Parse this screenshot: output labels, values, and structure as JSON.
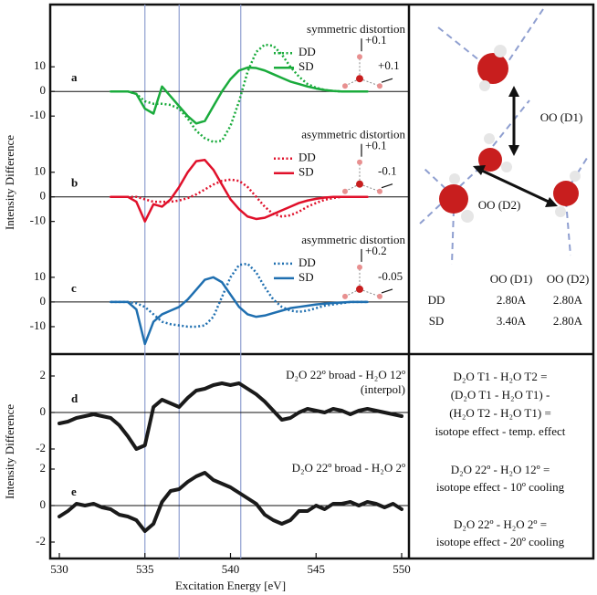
{
  "chart_data": [
    {
      "type": "line",
      "label": "a",
      "annotation": "symmetric distortion",
      "distortion": [
        "+0.1",
        "+0.1"
      ],
      "x": [
        533,
        533.5,
        534,
        534.5,
        535,
        535.5,
        536,
        536.5,
        537,
        537.5,
        538,
        538.5,
        539,
        539.5,
        540,
        540.5,
        541,
        541.5,
        542,
        542.5,
        543,
        543.5,
        544,
        544.5,
        545,
        545.5,
        546,
        546.5,
        547,
        547.5,
        548
      ],
      "series": [
        {
          "name": "DD",
          "color": "#1aab3c",
          "style": "dotted",
          "values": [
            0,
            0,
            0,
            -1,
            -4,
            -5,
            -5,
            -5.5,
            -7,
            -11,
            -16,
            -19,
            -20.5,
            -20,
            -14,
            -4,
            8,
            16,
            19,
            18.5,
            15,
            10,
            6,
            3,
            1.5,
            0.6,
            0.2,
            0,
            0,
            0,
            0
          ]
        },
        {
          "name": "SD",
          "color": "#1aab3c",
          "style": "solid",
          "values": [
            0,
            0,
            0,
            -1,
            -7,
            -9,
            2,
            -2,
            -6,
            -10,
            -13,
            -12,
            -6,
            0,
            5,
            8.5,
            9.7,
            9.5,
            8.5,
            7,
            5.5,
            4,
            3,
            2,
            1.2,
            0.6,
            0.2,
            0,
            0,
            0,
            0
          ]
        }
      ],
      "xlim": [
        530,
        550
      ],
      "ylim": [
        -24,
        26
      ],
      "yticks": [
        -10,
        0,
        10
      ],
      "vlines": [
        535,
        537,
        540.6
      ],
      "vline_color": "#8f9fd0"
    },
    {
      "type": "line",
      "label": "b",
      "annotation": "asymmetric distortion",
      "distortion": [
        "+0.1",
        "-0.1"
      ],
      "ylabel": "Intensity Difference",
      "x": [
        533,
        533.5,
        534,
        534.5,
        535,
        535.5,
        536,
        536.5,
        537,
        537.5,
        538,
        538.5,
        539,
        539.5,
        540,
        540.5,
        541,
        541.5,
        542,
        542.5,
        543,
        543.5,
        544,
        544.5,
        545,
        545.5,
        546,
        546.5,
        547,
        547.5,
        548
      ],
      "series": [
        {
          "name": "DD",
          "color": "#e0102a",
          "style": "dotted",
          "values": [
            0,
            0,
            0,
            0,
            -1,
            -2,
            -2,
            -2,
            -1.5,
            -0.5,
            1,
            3,
            5,
            6.5,
            7,
            6.5,
            4,
            0,
            -4,
            -7,
            -8,
            -7.5,
            -6,
            -4,
            -2.5,
            -1.2,
            -0.5,
            0,
            0,
            0,
            0
          ]
        },
        {
          "name": "SD",
          "color": "#e0102a",
          "style": "solid",
          "values": [
            0,
            0,
            0,
            -2,
            -10,
            -3,
            -4,
            -1,
            4,
            10,
            14.5,
            15,
            11,
            5,
            -1,
            -5,
            -8,
            -9,
            -8.5,
            -7,
            -5.5,
            -4,
            -2.5,
            -1.5,
            -0.8,
            -0.3,
            0,
            0,
            0,
            0,
            0
          ]
        }
      ],
      "xlim": [
        530,
        550
      ],
      "ylim": [
        -22,
        24
      ],
      "yticks": [
        -10,
        0,
        10
      ]
    },
    {
      "type": "line",
      "label": "c",
      "annotation": "asymmetric distortion",
      "distortion": [
        "+0.2",
        "-0.05"
      ],
      "x": [
        533,
        533.5,
        534,
        534.5,
        535,
        535.5,
        536,
        536.5,
        537,
        537.5,
        538,
        538.5,
        539,
        539.5,
        540,
        540.5,
        541,
        541.5,
        542,
        542.5,
        543,
        543.5,
        544,
        544.5,
        545,
        545.5,
        546,
        546.5,
        547,
        547.5,
        548
      ],
      "series": [
        {
          "name": "DD",
          "color": "#1f6fb0",
          "style": "dotted",
          "values": [
            0,
            0,
            0,
            -0.5,
            -2,
            -5,
            -8,
            -9,
            -9.5,
            -10,
            -10,
            -9.5,
            -6,
            2,
            10,
            15,
            15.5,
            12,
            6,
            1,
            -2,
            -3.5,
            -4,
            -3.5,
            -2.5,
            -1.5,
            -1,
            -0.5,
            0,
            0,
            0
          ]
        },
        {
          "name": "SD",
          "color": "#1f6fb0",
          "style": "solid",
          "values": [
            0,
            0,
            0,
            -3,
            -17,
            -8,
            -5,
            -3.5,
            -2,
            1,
            5,
            9,
            10,
            8,
            3,
            -2,
            -5,
            -6,
            -5.5,
            -4.5,
            -3.5,
            -2.5,
            -2,
            -1.5,
            -1,
            -0.7,
            -0.4,
            -0.2,
            0,
            0,
            0
          ]
        }
      ],
      "xlim": [
        530,
        550
      ],
      "ylim": [
        -20,
        24
      ],
      "yticks": [
        -10,
        0,
        10
      ]
    },
    {
      "type": "line",
      "label": "d",
      "annotation": "D₂O 22º broad - H₂O 12º",
      "note": "(interpol)",
      "ylabel": "Intensity Difference",
      "x": [
        530,
        530.5,
        531,
        531.5,
        532,
        532.5,
        533,
        533.5,
        534,
        534.5,
        535,
        535.5,
        536,
        536.5,
        537,
        537.5,
        538,
        538.5,
        539,
        539.5,
        540,
        540.5,
        541,
        541.5,
        542,
        542.5,
        543,
        543.5,
        544,
        544.5,
        545,
        545.5,
        546,
        546.5,
        547,
        547.5,
        548,
        548.5,
        549,
        549.5,
        550
      ],
      "series": [
        {
          "color": "#1a1a1a",
          "style": "solid",
          "values": [
            -0.6,
            -0.5,
            -0.3,
            -0.2,
            -0.1,
            -0.2,
            -0.3,
            -0.7,
            -1.3,
            -2,
            -1.8,
            0.3,
            0.7,
            0.5,
            0.3,
            0.8,
            1.2,
            1.3,
            1.5,
            1.6,
            1.5,
            1.6,
            1.3,
            1,
            0.6,
            0.1,
            -0.4,
            -0.3,
            0,
            0.2,
            0.1,
            0,
            0.2,
            0.1,
            -0.1,
            0.1,
            0.2,
            0.1,
            0,
            -0.1,
            -0.2
          ]
        }
      ],
      "xlim": [
        530,
        550
      ],
      "ylim": [
        -2.8,
        2.8
      ],
      "yticks": [
        -2,
        0,
        2
      ]
    },
    {
      "type": "line",
      "label": "e",
      "annotation": "D₂O 22º broad - H₂O 2º",
      "xlabel": "Excitation Energy [eV]",
      "x": [
        530,
        530.5,
        531,
        531.5,
        532,
        532.5,
        533,
        533.5,
        534,
        534.5,
        535,
        535.5,
        536,
        536.5,
        537,
        537.5,
        538,
        538.5,
        539,
        539.5,
        540,
        540.5,
        541,
        541.5,
        542,
        542.5,
        543,
        543.5,
        544,
        544.5,
        545,
        545.5,
        546,
        546.5,
        547,
        547.5,
        548,
        548.5,
        549,
        549.5,
        550
      ],
      "series": [
        {
          "color": "#1a1a1a",
          "style": "solid",
          "values": [
            -0.6,
            -0.3,
            0.1,
            0,
            0.1,
            -0.1,
            -0.2,
            -0.5,
            -0.6,
            -0.8,
            -1.4,
            -1,
            0.2,
            0.8,
            0.9,
            1.3,
            1.6,
            1.8,
            1.4,
            1.2,
            1,
            0.7,
            0.4,
            0.1,
            -0.5,
            -0.8,
            -1,
            -0.8,
            -0.3,
            -0.3,
            0,
            -0.2,
            0.1,
            0.1,
            0.2,
            0,
            0.2,
            0.1,
            -0.1,
            0.1,
            -0.2
          ]
        }
      ],
      "xlim": [
        530,
        550
      ],
      "ylim": [
        -2.8,
        2.8
      ],
      "yticks": [
        -2,
        0,
        2
      ],
      "xticks": [
        530,
        535,
        540,
        545,
        550
      ]
    }
  ],
  "diagram": {
    "labels": [
      "OO (D1)",
      "OO (D2)"
    ]
  },
  "table": {
    "header": [
      "OO (D1)",
      "OO (D2)"
    ],
    "rows": [
      [
        "DD",
        "2.80A",
        "2.80A"
      ],
      [
        "SD",
        "3.40A",
        "2.80A"
      ]
    ]
  },
  "notes": [
    [
      "D₂O T1 - H₂O T2  =",
      "(D₂O T1 - H₂O T1) -",
      "(H₂O T2 - H₂O T1) =",
      "isotope effect - temp. effect"
    ],
    [
      "D₂O 22º - H₂O 12º =",
      "isotope effect - 10º cooling"
    ],
    [
      "D₂O 22º - H₂O   2º =",
      "isotope effect - 20º cooling"
    ]
  ]
}
